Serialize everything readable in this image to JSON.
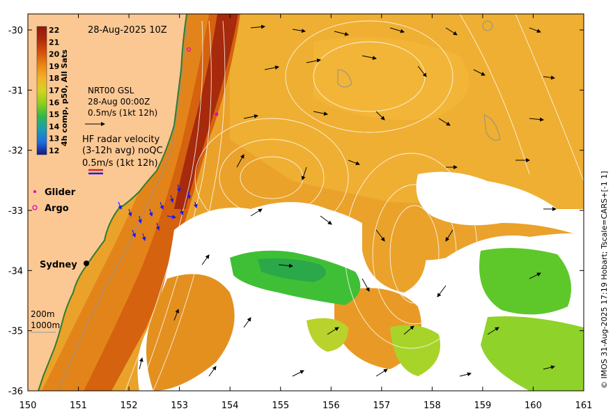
{
  "map": {
    "timestamp_label": "28-Aug-2025 10Z",
    "colorbar": {
      "label": "4h comp, p50, All Sats",
      "ticks": [
        "22",
        "21",
        "20",
        "19",
        "18",
        "17",
        "16",
        "15",
        "14",
        "13",
        "12"
      ],
      "colors": [
        "#8e1a0e",
        "#b0290b",
        "#d6500a",
        "#ea8512",
        "#f3b12a",
        "#d7d020",
        "#8ed01a",
        "#30b84a",
        "#1a9fb0",
        "#1f6fe0",
        "#2037b8",
        "#151a80"
      ]
    },
    "gsl_legend": {
      "line1": "NRT00 GSL",
      "line2": "28-Aug 00:00Z",
      "line3": "0.5m/s (1kt 12h)"
    },
    "radar_legend": {
      "line1": "HF radar velocity",
      "line2": "(3-12h avg) noQC",
      "line3": "0.5m/s (1kt 12h)"
    },
    "glider_label": "Glider",
    "argo_label": "Argo",
    "city_label": "Sydney",
    "depth_labels": [
      "200m",
      "1000m"
    ],
    "x_ticks": [
      "150",
      "151",
      "152",
      "153",
      "154",
      "155",
      "156",
      "157",
      "158",
      "159",
      "160",
      "161"
    ],
    "y_ticks": [
      "-30",
      "-31",
      "-32",
      "-33",
      "-34",
      "-35",
      "-36"
    ],
    "credit": "© IMOS 31-Aug-2025 17:19 Hobart; Tscale=CARS+[-1 1]"
  }
}
